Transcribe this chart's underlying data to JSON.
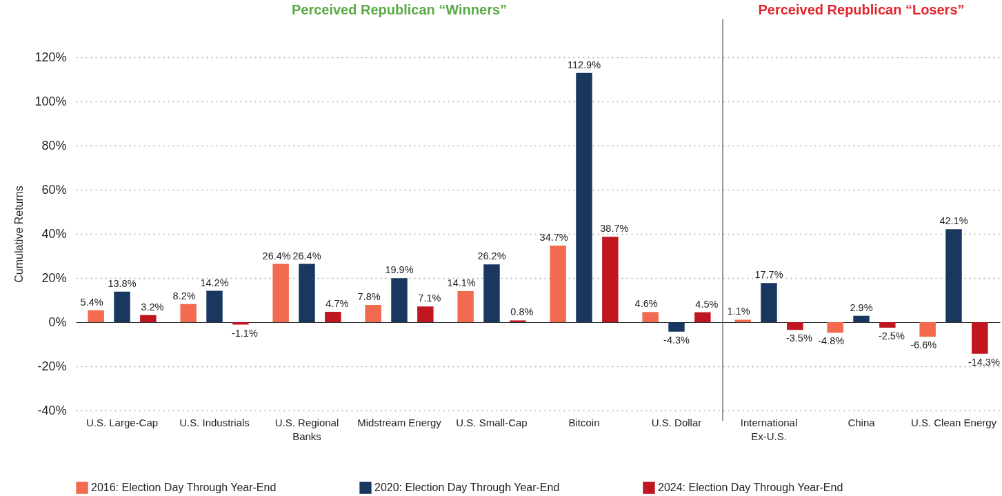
{
  "chart_data": {
    "type": "bar",
    "ylabel": "Cumulative Returns",
    "categories": [
      "U.S. Large-Cap",
      "U.S. Industrials",
      "U.S. Regional Banks",
      "Midstream Energy",
      "U.S. Small-Cap",
      "Bitcoin",
      "U.S. Dollar",
      "International Ex-U.S.",
      "China",
      "U.S. Clean Energy"
    ],
    "series": [
      {
        "name": "2016: Election Day Through Year-End",
        "color": "#f26a4f",
        "values": [
          5.4,
          8.2,
          26.4,
          7.8,
          14.1,
          34.7,
          4.6,
          1.1,
          -4.8,
          -6.6
        ],
        "value_labels": [
          "5.4%",
          "8.2%",
          "26.4%",
          "7.8%",
          "14.1%",
          "34.7%",
          "4.6%",
          "1.1%",
          "-4.8%",
          "-6.6%"
        ]
      },
      {
        "name": "2020: Election Day Through Year-End",
        "color": "#1a3760",
        "values": [
          13.8,
          14.2,
          26.4,
          19.9,
          26.2,
          112.9,
          -4.3,
          17.7,
          2.9,
          42.1
        ],
        "value_labels": [
          "13.8%",
          "14.2%",
          "26.4%",
          "19.9%",
          "26.2%",
          "112.9%",
          "-4.3%",
          "17.7%",
          "2.9%",
          "42.1%"
        ]
      },
      {
        "name": "2024: Election Day Through Year-End",
        "color": "#bf1620",
        "values": [
          3.2,
          -1.1,
          4.7,
          7.1,
          0.8,
          38.7,
          4.5,
          -3.5,
          -2.5,
          -14.3
        ],
        "value_labels": [
          "3.2%",
          "-1.1%",
          "4.7%",
          "7.1%",
          "0.8%",
          "38.7%",
          "4.5%",
          "-3.5%",
          "-2.5%",
          "-14.3%"
        ]
      }
    ],
    "ylim": [
      -40,
      120
    ],
    "yticks": [
      {
        "value": -40,
        "label": "-40%"
      },
      {
        "value": -20,
        "label": "-20%"
      },
      {
        "value": 0,
        "label": "0%"
      },
      {
        "value": 20,
        "label": "20%"
      },
      {
        "value": 40,
        "label": "40%"
      },
      {
        "value": 60,
        "label": "60%"
      },
      {
        "value": 80,
        "label": "80%"
      },
      {
        "value": 100,
        "label": "100%"
      },
      {
        "value": 120,
        "label": "120%"
      }
    ],
    "grid": "y",
    "legend": "bottom",
    "ref_lines": [
      {
        "axis": "x",
        "value": "International Ex-U.S.",
        "color": "#555555"
      }
    ],
    "annotations": [
      "Perceived Republican “Winners”",
      "Perceived Republican “Losers”"
    ]
  }
}
